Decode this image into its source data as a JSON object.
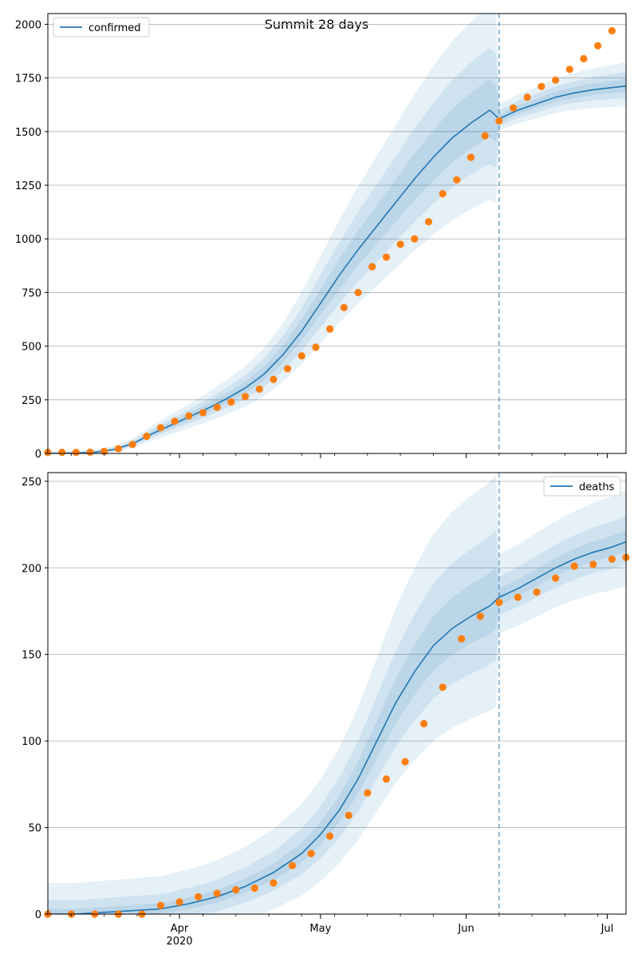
{
  "figure": {
    "title": "Summit 28 days"
  },
  "colors": {
    "model_line": "#1f77b4",
    "observed_points": "#ff7f0e",
    "band": "#1f77b4",
    "split_line": "#1f77b4",
    "grid": "#b0b0b0"
  },
  "chart_data": [
    {
      "type": "line",
      "series": [
        {
          "name": "confirmed",
          "kind": "model-median",
          "x": [
            "2020-03-04",
            "2020-03-10",
            "2020-03-14",
            "2020-03-18",
            "2020-03-22",
            "2020-03-26",
            "2020-03-30",
            "2020-04-03",
            "2020-04-07",
            "2020-04-11",
            "2020-04-15",
            "2020-04-19",
            "2020-04-23",
            "2020-04-27",
            "2020-05-01",
            "2020-05-05",
            "2020-05-09",
            "2020-05-13",
            "2020-05-17",
            "2020-05-21",
            "2020-05-25",
            "2020-05-29",
            "2020-06-02",
            "2020-06-06",
            "2020-06-08",
            "2020-06-12",
            "2020-06-16",
            "2020-06-20",
            "2020-06-24",
            "2020-06-28",
            "2020-07-02",
            "2020-07-05"
          ],
          "y": [
            0,
            2,
            6,
            18,
            45,
            90,
            130,
            170,
            210,
            255,
            305,
            370,
            460,
            570,
            700,
            830,
            950,
            1060,
            1170,
            1280,
            1380,
            1470,
            1540,
            1600,
            1560,
            1600,
            1630,
            1660,
            1680,
            1695,
            1705,
            1712
          ]
        },
        {
          "name": "observed",
          "kind": "points",
          "x": [
            "2020-03-04",
            "2020-03-07",
            "2020-03-10",
            "2020-03-13",
            "2020-03-16",
            "2020-03-19",
            "2020-03-22",
            "2020-03-25",
            "2020-03-28",
            "2020-03-31",
            "2020-04-03",
            "2020-04-06",
            "2020-04-09",
            "2020-04-12",
            "2020-04-15",
            "2020-04-18",
            "2020-04-21",
            "2020-04-24",
            "2020-04-27",
            "2020-04-30",
            "2020-05-03",
            "2020-05-06",
            "2020-05-09",
            "2020-05-12",
            "2020-05-15",
            "2020-05-18",
            "2020-05-21",
            "2020-05-24",
            "2020-05-27",
            "2020-05-30",
            "2020-06-02",
            "2020-06-05",
            "2020-06-08",
            "2020-06-11",
            "2020-06-14",
            "2020-06-17",
            "2020-06-20",
            "2020-06-23",
            "2020-06-26",
            "2020-06-29",
            "2020-07-02"
          ],
          "y": [
            5,
            5,
            5,
            6,
            10,
            22,
            42,
            80,
            120,
            150,
            175,
            190,
            215,
            240,
            265,
            300,
            345,
            395,
            455,
            495,
            580,
            680,
            750,
            870,
            915,
            975,
            1000,
            1080,
            1210,
            1275,
            1380,
            1480,
            1550,
            1610,
            1660,
            1710,
            1740,
            1790,
            1840,
            1900,
            1970
          ]
        }
      ],
      "bands": "nested uncertainty bands around the model median, narrowing after the split date",
      "split_date": "2020-06-08",
      "ylim": [
        0,
        2050
      ],
      "yticks": [
        0,
        250,
        500,
        750,
        1000,
        1250,
        1500,
        1750,
        2000
      ],
      "grid": "horizontal",
      "legend": {
        "placement": "top-left",
        "entries": [
          "confirmed"
        ]
      }
    },
    {
      "type": "line",
      "series": [
        {
          "name": "deaths",
          "kind": "model-median",
          "x": [
            "2020-03-04",
            "2020-03-10",
            "2020-03-16",
            "2020-03-22",
            "2020-03-28",
            "2020-04-03",
            "2020-04-09",
            "2020-04-15",
            "2020-04-21",
            "2020-04-27",
            "2020-05-01",
            "2020-05-05",
            "2020-05-09",
            "2020-05-13",
            "2020-05-17",
            "2020-05-21",
            "2020-05-25",
            "2020-05-29",
            "2020-06-02",
            "2020-06-06",
            "2020-06-08",
            "2020-06-12",
            "2020-06-16",
            "2020-06-20",
            "2020-06-24",
            "2020-06-28",
            "2020-07-02",
            "2020-07-05"
          ],
          "y": [
            0,
            0,
            1,
            2,
            3,
            6,
            10,
            16,
            24,
            35,
            46,
            60,
            78,
            100,
            122,
            140,
            155,
            165,
            172,
            178,
            183,
            188,
            194,
            200,
            205,
            209,
            212,
            215
          ]
        },
        {
          "name": "observed",
          "kind": "points",
          "x": [
            "2020-03-04",
            "2020-03-09",
            "2020-03-14",
            "2020-03-19",
            "2020-03-24",
            "2020-03-28",
            "2020-04-01",
            "2020-04-05",
            "2020-04-09",
            "2020-04-13",
            "2020-04-17",
            "2020-04-21",
            "2020-04-25",
            "2020-04-29",
            "2020-05-03",
            "2020-05-07",
            "2020-05-11",
            "2020-05-15",
            "2020-05-19",
            "2020-05-23",
            "2020-05-27",
            "2020-05-31",
            "2020-06-04",
            "2020-06-08",
            "2020-06-12",
            "2020-06-16",
            "2020-06-20",
            "2020-06-24",
            "2020-06-28",
            "2020-07-02",
            "2020-07-05"
          ],
          "y": [
            0,
            0,
            0,
            0,
            0,
            5,
            7,
            10,
            12,
            14,
            15,
            18,
            28,
            35,
            45,
            57,
            70,
            78,
            88,
            110,
            131,
            159,
            172,
            180,
            183,
            186,
            194,
            201,
            202,
            205,
            206
          ]
        }
      ],
      "bands": "nested uncertainty bands around the model median, narrowing after the split date",
      "split_date": "2020-06-08",
      "ylim": [
        0,
        255
      ],
      "yticks": [
        0,
        50,
        100,
        150,
        200,
        250
      ],
      "xticks": [
        {
          "date": "2020-04-01",
          "label": "Apr",
          "sublabel": "2020"
        },
        {
          "date": "2020-05-01",
          "label": "May",
          "sublabel": ""
        },
        {
          "date": "2020-06-01",
          "label": "Jun",
          "sublabel": ""
        },
        {
          "date": "2020-07-01",
          "label": "Jul",
          "sublabel": ""
        }
      ],
      "xlim": [
        "2020-03-04",
        "2020-07-05"
      ],
      "grid": "horizontal",
      "legend": {
        "placement": "top-right",
        "entries": [
          "deaths"
        ]
      }
    }
  ]
}
